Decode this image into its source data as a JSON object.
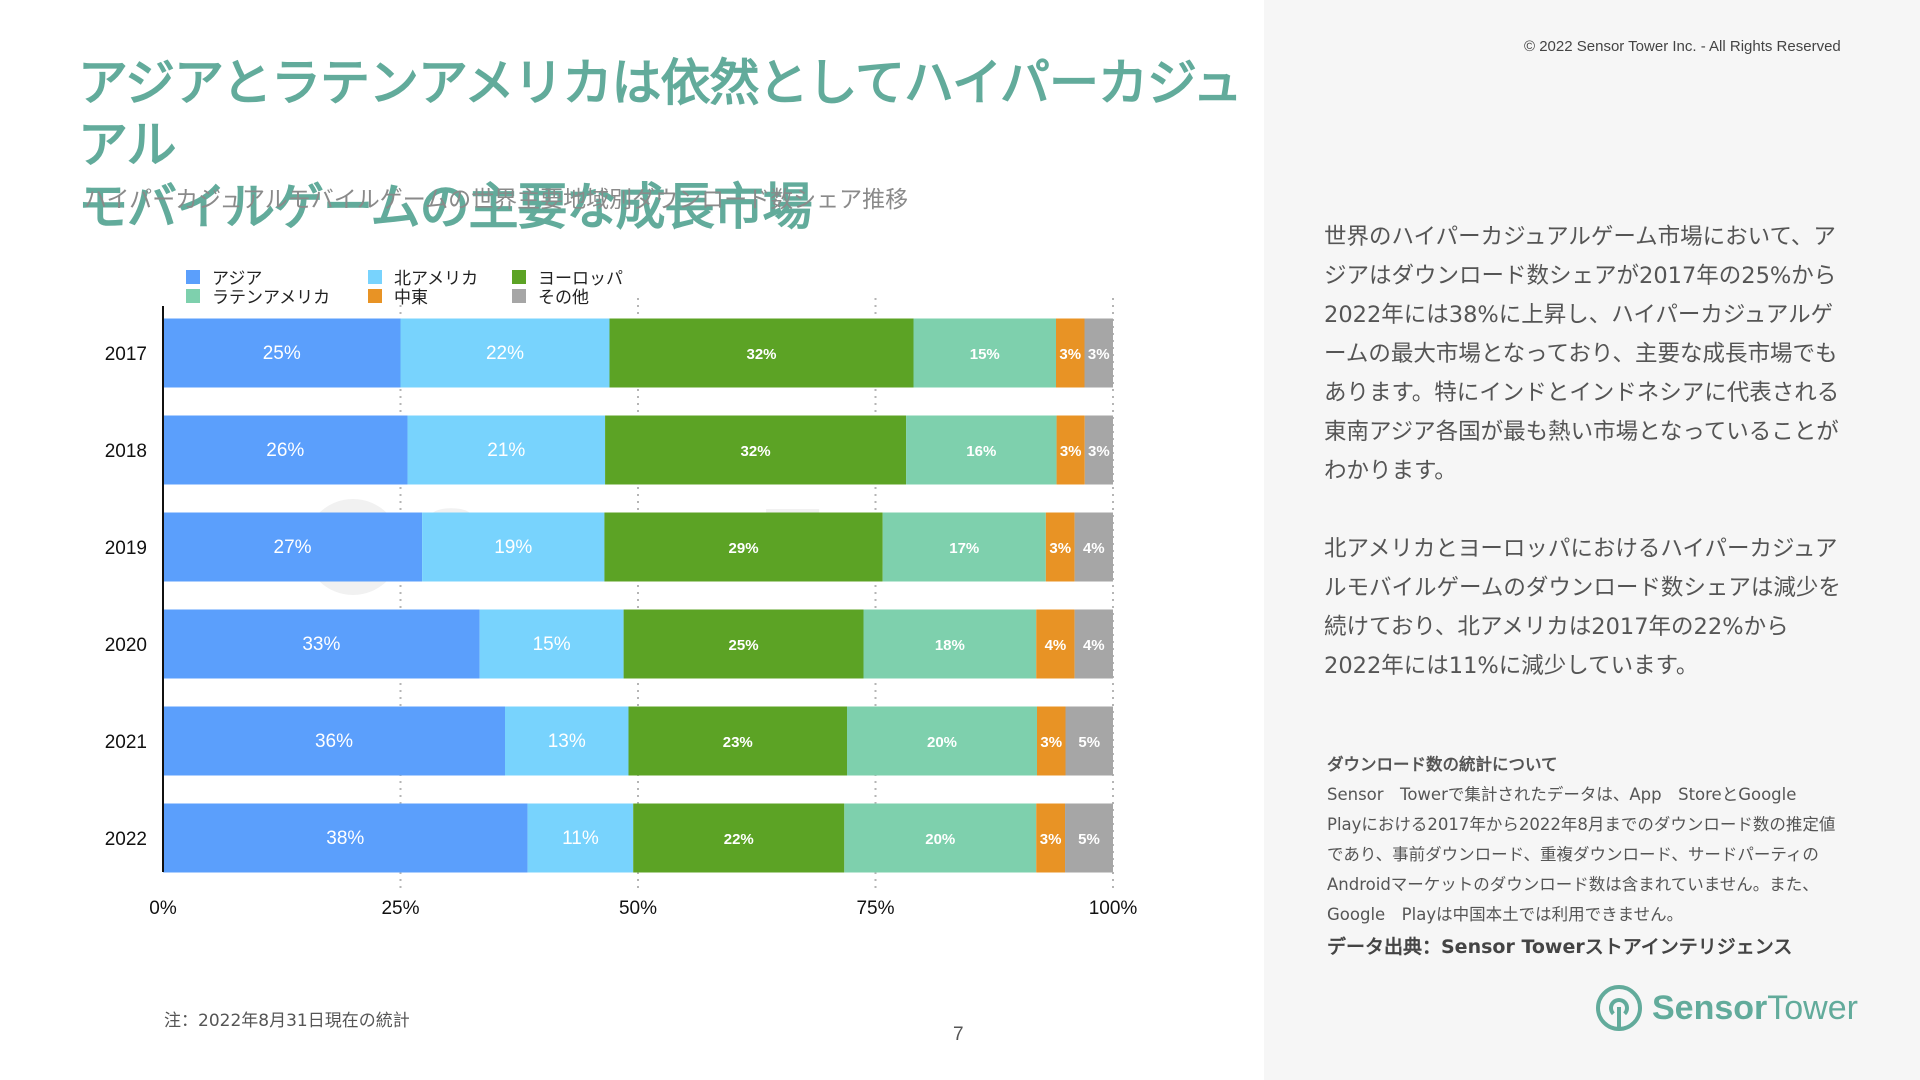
{
  "header": {
    "title_line1": "アジアとラテンアメリカは依然としてハイパーカジュアル",
    "title_line2": "モバイルゲームの主要な成長市場",
    "subtitle": "ハイパーカジュアルモバイルゲームの世界主要地域別ダウンロード数シェア推移",
    "copyright": "© 2022 Sensor Tower Inc. - All Rights Reserved"
  },
  "watermark": "Sensor Tower",
  "chart_data": {
    "type": "bar",
    "orientation": "horizontal",
    "stacked": true,
    "normalized": true,
    "title": "ハイパーカジュアルモバイルゲームの世界主要地域別ダウンロード数シェア推移",
    "xlabel": "",
    "ylabel": "",
    "categories": [
      "2017",
      "2018",
      "2019",
      "2020",
      "2021",
      "2022"
    ],
    "xlim": [
      0,
      100
    ],
    "xticks": [
      "0%",
      "25%",
      "50%",
      "75%",
      "100%"
    ],
    "grid": "vertical-dotted",
    "legend_position": "top-left",
    "series": [
      {
        "name": "アジア",
        "color": "#5b9ffc",
        "values": [
          25,
          26,
          27,
          33,
          36,
          38
        ]
      },
      {
        "name": "北アメリカ",
        "color": "#78d3fd",
        "values": [
          22,
          21,
          19,
          15,
          13,
          11
        ]
      },
      {
        "name": "ヨーロッパ",
        "color": "#5ca325",
        "values": [
          32,
          32,
          29,
          25,
          23,
          22
        ]
      },
      {
        "name": "ラテンアメリカ",
        "color": "#7ed0ad",
        "values": [
          15,
          16,
          17,
          18,
          20,
          20
        ]
      },
      {
        "name": "中東",
        "color": "#e89325",
        "values": [
          3,
          3,
          3,
          4,
          3,
          3
        ]
      },
      {
        "name": "その他",
        "color": "#a6a6a6",
        "values": [
          3,
          3,
          4,
          4,
          5,
          5
        ]
      }
    ]
  },
  "legend": [
    {
      "name": "アジア",
      "color": "#5b9ffc"
    },
    {
      "name": "北アメリカ",
      "color": "#78d3fd"
    },
    {
      "name": "ヨーロッパ",
      "color": "#5ca325"
    },
    {
      "name": "ラテンアメリカ",
      "color": "#7ed0ad"
    },
    {
      "name": "中東",
      "color": "#e89325"
    },
    {
      "name": "その他",
      "color": "#a6a6a6"
    }
  ],
  "footer": {
    "note": "注：2022年8月31日現在の統計",
    "page_number": "7"
  },
  "commentary": {
    "paragraph1": "世界のハイパーカジュアルゲーム市場において、アジアはダウンロード数シェアが2017年の25%から2022年には38%に上昇し、ハイパーカジュアルゲームの最大市場となっており、主要な成長市場でもあります。特にインドとインドネシアに代表される東南アジア各国が最も熱い市場となっていることがわかります。",
    "paragraph2": "北アメリカとヨーロッパにおけるハイパーカジュアルモバイルゲームのダウンロード数シェアは減少を続けており、北アメリカは2017年の22%から2022年には11%に減少しています。"
  },
  "notes": {
    "heading": "ダウンロード数の統計について",
    "body": "Sensor　Towerで集計されたデータは、App　StoreとGoogle　Playにおける2017年から2022年8月までのダウンロード数の推定値であり、事前ダウンロード、重複ダウンロード、サードパーティのAndroidマーケットのダウンロード数は含まれていません。また、Google　Playは中国本土では利用できません。",
    "source": "データ出典：Sensor Towerストアインテリジェンス"
  },
  "logo": {
    "bold": "Sensor",
    "regular": "Tower"
  }
}
